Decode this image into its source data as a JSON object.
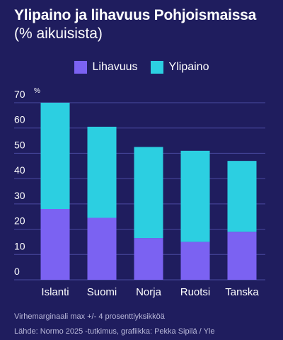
{
  "title": "Ylipaino ja lihavuus Pohjoismaissa",
  "subtitle": "(% aikuisista)",
  "colors": {
    "background": "#1f1d5e",
    "lihavuus": "#7b62f2",
    "ylipaino": "#2ccfe1",
    "grid": "#4a4aa0",
    "text": "#ffffff"
  },
  "chart_data": {
    "type": "bar",
    "stacked": true,
    "categories": [
      "Islanti",
      "Suomi",
      "Norja",
      "Ruotsi",
      "Tanska"
    ],
    "series": [
      {
        "name": "Lihavuus",
        "values": [
          28,
          24.5,
          16.5,
          15,
          19
        ]
      },
      {
        "name": "Ylipaino",
        "values": [
          42,
          36,
          36,
          36,
          28
        ]
      }
    ],
    "totals": [
      70,
      60.5,
      52.5,
      51,
      47
    ],
    "ylim": [
      0,
      70
    ],
    "yticks": [
      0,
      10,
      20,
      30,
      40,
      50,
      60,
      70
    ],
    "yunit": "%",
    "grid": true,
    "legend_position": "top-center"
  },
  "footer": {
    "note": "Virhemarginaali max +/- 4 prosenttiyksikköä",
    "source": "Lähde: Normo 2025 -tutkimus, grafiikka: Pekka Sipilä  / Yle"
  }
}
